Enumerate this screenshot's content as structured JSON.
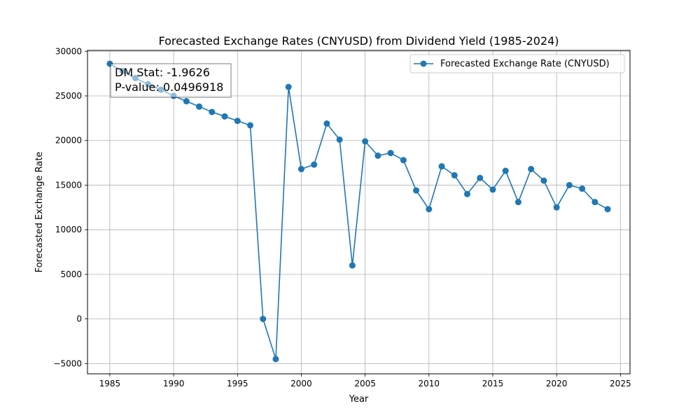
{
  "chart_data": {
    "type": "line",
    "title": "Forecasted Exchange Rates (CNYUSD) from Dividend Yield (1985-2024)",
    "xlabel": "Year",
    "ylabel": "Forecasted Exchange Rate",
    "xlim": [
      1983.25,
      2025.75
    ],
    "ylim": [
      -6150,
      30100
    ],
    "x_ticks": [
      1985,
      1990,
      1995,
      2000,
      2005,
      2010,
      2015,
      2020,
      2025
    ],
    "y_ticks": [
      -5000,
      0,
      5000,
      10000,
      15000,
      20000,
      25000,
      30000
    ],
    "grid": true,
    "legend_position": "upper right",
    "x": [
      1985,
      1986,
      1987,
      1988,
      1989,
      1990,
      1991,
      1992,
      1993,
      1994,
      1995,
      1996,
      1997,
      1998,
      1999,
      2000,
      2001,
      2002,
      2003,
      2004,
      2005,
      2006,
      2007,
      2008,
      2009,
      2010,
      2011,
      2012,
      2013,
      2014,
      2015,
      2016,
      2017,
      2018,
      2019,
      2020,
      2021,
      2022,
      2023,
      2024
    ],
    "series": [
      {
        "name": "Forecasted Exchange Rate (CNYUSD)",
        "color": "#1f77b4",
        "marker": "circle",
        "values": [
          28600,
          27800,
          27000,
          26300,
          25700,
          25000,
          24400,
          23800,
          23200,
          22700,
          22200,
          21700,
          0,
          -4500,
          26000,
          16800,
          17300,
          21900,
          20100,
          6000,
          19900,
          18300,
          18600,
          17800,
          14400,
          12300,
          17100,
          16100,
          14000,
          15800,
          14500,
          16600,
          13100,
          16800,
          15500,
          12500,
          15000,
          14600,
          13100,
          12300
        ]
      }
    ],
    "annotation": {
      "lines": [
        "DM Stat: -1.9626",
        "P-value: 0.0496918"
      ],
      "position": "upper left"
    }
  }
}
